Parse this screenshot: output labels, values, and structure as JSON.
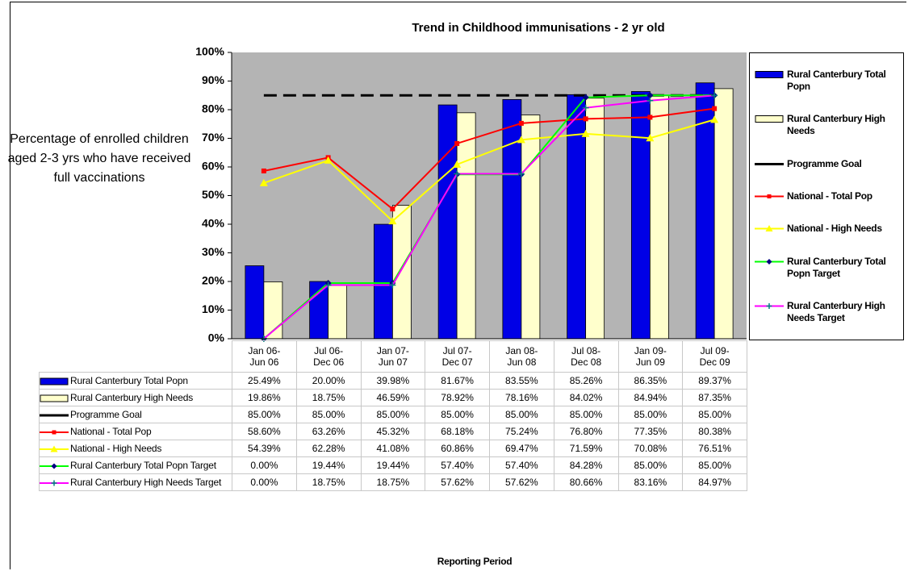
{
  "chart_data": {
    "type": "bar",
    "title": "Trend in Childhood immunisations - 2 yr old",
    "y_label": "Percentage of enrolled children aged 2-3 yrs who have received full vaccinations",
    "x_label": "Reporting Period",
    "categories": [
      [
        "Jan 06-",
        "Jun 06"
      ],
      [
        "Jul 06-",
        "Dec 06"
      ],
      [
        "Jan 07-",
        "Jun 07"
      ],
      [
        "Jul 07-",
        "Dec 07"
      ],
      [
        "Jan 08-",
        "Jun 08"
      ],
      [
        "Jul 08-",
        "Dec 08"
      ],
      [
        "Jan 09-",
        "Jun 09"
      ],
      [
        "Jul 09-",
        "Dec 09"
      ]
    ],
    "ylim": [
      0,
      100
    ],
    "yticks": [
      {
        "value": 0,
        "label": "0%"
      },
      {
        "value": 10,
        "label": "10%"
      },
      {
        "value": 20,
        "label": "20%"
      },
      {
        "value": 30,
        "label": "30%"
      },
      {
        "value": 40,
        "label": "40%"
      },
      {
        "value": 50,
        "label": "50%"
      },
      {
        "value": 60,
        "label": "60%"
      },
      {
        "value": 70,
        "label": "70%"
      },
      {
        "value": 80,
        "label": "80%"
      },
      {
        "value": 90,
        "label": "90%"
      },
      {
        "value": 100,
        "label": "100%"
      }
    ],
    "grid": false,
    "plot_background": "#b4b4b4",
    "legend": "right",
    "series": [
      {
        "name": "Rural Canterbury Total Popn",
        "type": "bar",
        "color": "#0000e6",
        "values": [
          25.49,
          20.0,
          39.98,
          81.67,
          83.55,
          85.26,
          86.35,
          89.37
        ],
        "value_labels": [
          "25.49%",
          "20.00%",
          "39.98%",
          "81.67%",
          "83.55%",
          "85.26%",
          "86.35%",
          "89.37%"
        ]
      },
      {
        "name": "Rural Canterbury High Needs",
        "type": "bar",
        "color": "#ffffcc",
        "values": [
          19.86,
          18.75,
          46.59,
          78.92,
          78.16,
          84.02,
          84.94,
          87.35
        ],
        "value_labels": [
          "19.86%",
          "18.75%",
          "46.59%",
          "78.92%",
          "78.16%",
          "84.02%",
          "84.94%",
          "87.35%"
        ]
      },
      {
        "name": "Programme Goal",
        "type": "line",
        "color": "#000000",
        "dashed": true,
        "marker": "none",
        "values": [
          85.0,
          85.0,
          85.0,
          85.0,
          85.0,
          85.0,
          85.0,
          85.0
        ],
        "value_labels": [
          "85.00%",
          "85.00%",
          "85.00%",
          "85.00%",
          "85.00%",
          "85.00%",
          "85.00%",
          "85.00%"
        ]
      },
      {
        "name": "National - Total Pop",
        "type": "line",
        "color": "#ff0000",
        "marker": "square",
        "marker_color": "#ff0000",
        "values": [
          58.6,
          63.26,
          45.32,
          68.18,
          75.24,
          76.8,
          77.35,
          80.38
        ],
        "value_labels": [
          "58.60%",
          "63.26%",
          "45.32%",
          "68.18%",
          "75.24%",
          "76.80%",
          "77.35%",
          "80.38%"
        ]
      },
      {
        "name": "National - High Needs",
        "type": "line",
        "color": "#ffff00",
        "marker": "triangle",
        "marker_color": "#ffff00",
        "values": [
          54.39,
          62.28,
          41.08,
          60.86,
          69.47,
          71.59,
          70.08,
          76.51
        ],
        "value_labels": [
          "54.39%",
          "62.28%",
          "41.08%",
          "60.86%",
          "69.47%",
          "71.59%",
          "70.08%",
          "76.51%"
        ]
      },
      {
        "name": "Rural Canterbury Total Popn Target",
        "type": "line",
        "color": "#00ff00",
        "marker": "diamond",
        "marker_color": "#000080",
        "values": [
          0.0,
          19.44,
          19.44,
          57.4,
          57.4,
          84.28,
          85.0,
          85.0
        ],
        "value_labels": [
          "0.00%",
          "19.44%",
          "19.44%",
          "57.40%",
          "57.40%",
          "84.28%",
          "85.00%",
          "85.00%"
        ]
      },
      {
        "name": "Rural Canterbury High Needs Target",
        "type": "line",
        "color": "#ff00ff",
        "marker": "plus",
        "marker_color": "#008080",
        "values": [
          0.0,
          18.75,
          18.75,
          57.62,
          57.62,
          80.66,
          83.16,
          84.97
        ],
        "value_labels": [
          "0.00%",
          "18.75%",
          "18.75%",
          "57.62%",
          "57.62%",
          "80.66%",
          "83.16%",
          "84.97%"
        ]
      }
    ]
  }
}
